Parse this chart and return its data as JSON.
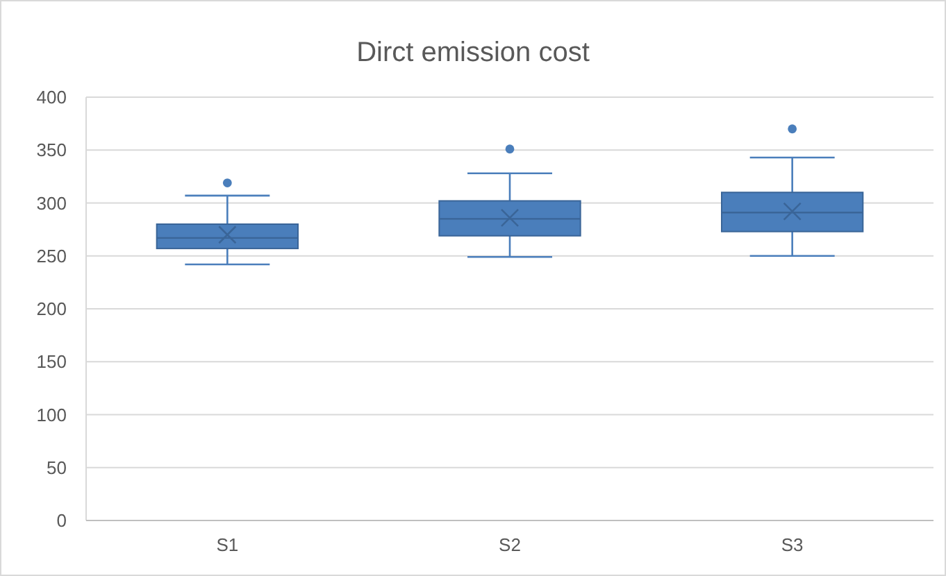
{
  "chart_data": {
    "type": "box",
    "title": "Dirct emission cost",
    "categories": [
      "S1",
      "S2",
      "S3"
    ],
    "color": "#4a7ebb",
    "boxes": [
      {
        "low": 242,
        "q1": 257,
        "median": 267,
        "q3": 280,
        "high": 307,
        "mean": 270,
        "outliers": [
          319
        ]
      },
      {
        "low": 249,
        "q1": 269,
        "median": 285,
        "q3": 302,
        "high": 328,
        "mean": 286,
        "outliers": [
          351
        ]
      },
      {
        "low": 250,
        "q1": 273,
        "median": 291,
        "q3": 310,
        "high": 343,
        "mean": 292,
        "outliers": [
          370
        ]
      }
    ],
    "ylim": [
      0,
      400
    ],
    "yticks": [
      0,
      50,
      100,
      150,
      200,
      250,
      300,
      350,
      400
    ],
    "grid": "y"
  }
}
